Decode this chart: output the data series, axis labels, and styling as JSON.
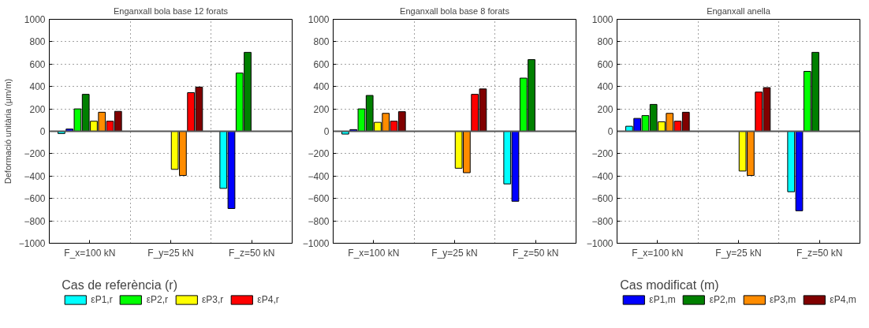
{
  "chart_data": [
    {
      "type": "bar",
      "title": "Enganxall bola base 12 forats",
      "ylabel": "Deformació unitària (μm/m)",
      "legend_title": "Cas de referència (r)",
      "legend": "bottom",
      "grid": true,
      "categories": [
        "F_x=100 kN",
        "F_y=25 kN",
        "F_z=50 kN"
      ],
      "ylim": [
        -1000,
        1000
      ],
      "yticks": [
        -1000,
        -800,
        -600,
        -400,
        -200,
        0,
        200,
        400,
        600,
        800,
        1000
      ],
      "series": [
        {
          "name": "εP1,r",
          "color": "#00ffff",
          "values": [
            -20,
            0,
            -510
          ]
        },
        {
          "color": "#0000ff",
          "values": [
            20,
            0,
            -690
          ]
        },
        {
          "name": "εP2,r",
          "color": "#00ff00",
          "values": [
            200,
            0,
            520
          ]
        },
        {
          "color": "#008000",
          "values": [
            330,
            0,
            705
          ]
        },
        {
          "name": "εP3,r",
          "color": "#ffff00",
          "values": [
            90,
            -340,
            0
          ]
        },
        {
          "color": "#ff8c00",
          "values": [
            170,
            -395,
            0
          ]
        },
        {
          "name": "εP4,r",
          "color": "#ff0000",
          "values": [
            90,
            345,
            0
          ]
        },
        {
          "color": "#800000",
          "values": [
            178,
            395,
            0
          ]
        }
      ]
    },
    {
      "type": "bar",
      "title": "Enganxall bola base 8 forats",
      "grid": true,
      "categories": [
        "F_x=100 kN",
        "F_y=25 kN",
        "F_z=50 kN"
      ],
      "ylim": [
        -1000,
        1000
      ],
      "yticks": [
        -1000,
        -800,
        -600,
        -400,
        -200,
        0,
        200,
        400,
        600,
        800,
        1000
      ],
      "series": [
        {
          "color": "#00ffff",
          "values": [
            -25,
            0,
            -470
          ]
        },
        {
          "color": "#0000ff",
          "values": [
            15,
            0,
            -625
          ]
        },
        {
          "color": "#00ff00",
          "values": [
            200,
            0,
            475
          ]
        },
        {
          "color": "#008000",
          "values": [
            320,
            0,
            640
          ]
        },
        {
          "color": "#ffff00",
          "values": [
            80,
            -330,
            0
          ]
        },
        {
          "color": "#ff8c00",
          "values": [
            160,
            -370,
            0
          ]
        },
        {
          "color": "#ff0000",
          "values": [
            90,
            330,
            0
          ]
        },
        {
          "color": "#800000",
          "values": [
            175,
            378,
            0
          ]
        }
      ]
    },
    {
      "type": "bar",
      "title": "Enganxall anella",
      "legend_title": "Cas modificat (m)",
      "legend": "bottom",
      "grid": true,
      "categories": [
        "F_x=100 kN",
        "F_y=25 kN",
        "F_z=50 kN"
      ],
      "ylim": [
        -1000,
        1000
      ],
      "yticks": [
        -1000,
        -800,
        -600,
        -400,
        -200,
        0,
        200,
        400,
        600,
        800,
        1000
      ],
      "series": [
        {
          "color": "#00ffff",
          "values": [
            45,
            0,
            -540
          ]
        },
        {
          "name": "εP1,m",
          "color": "#0000ff",
          "values": [
            115,
            0,
            -710
          ]
        },
        {
          "color": "#00ff00",
          "values": [
            140,
            0,
            535
          ]
        },
        {
          "name": "εP2,m",
          "color": "#008000",
          "values": [
            240,
            0,
            705
          ]
        },
        {
          "color": "#ffff00",
          "values": [
            85,
            -355,
            0
          ]
        },
        {
          "name": "εP3,m",
          "color": "#ff8c00",
          "values": [
            160,
            -395,
            0
          ]
        },
        {
          "color": "#ff0000",
          "values": [
            90,
            350,
            0
          ]
        },
        {
          "name": "εP4,m",
          "color": "#800000",
          "values": [
            170,
            390,
            null
          ]
        }
      ]
    }
  ]
}
